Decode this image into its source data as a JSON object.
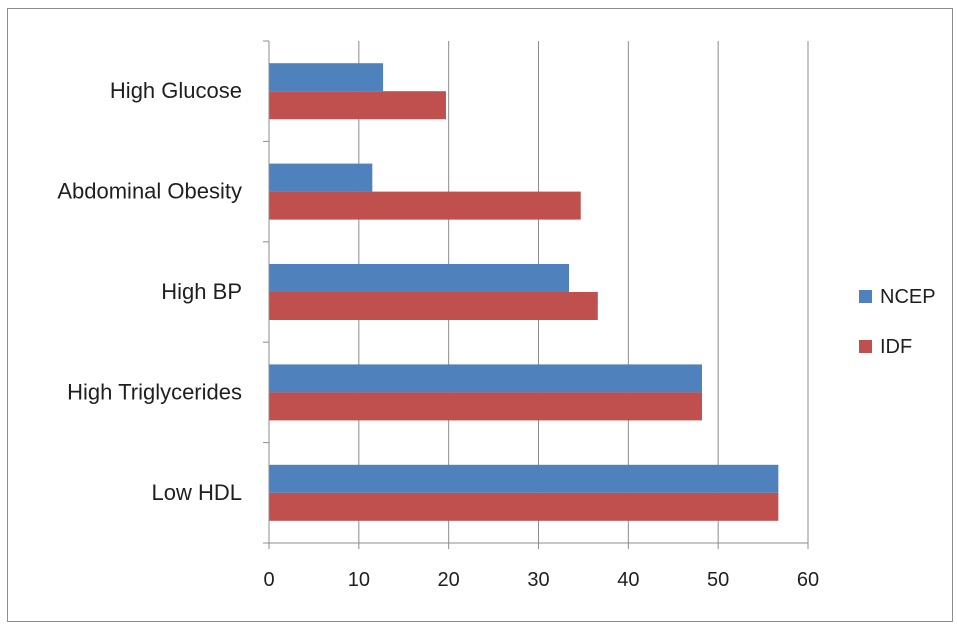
{
  "chart_data": {
    "type": "bar",
    "orientation": "horizontal",
    "categories": [
      "Low HDL",
      "High Triglycerides",
      "High BP",
      "Abdominal Obesity",
      "High Glucose"
    ],
    "series": [
      {
        "name": "NCEP",
        "color": "#4f81bd",
        "values": [
          56.7,
          48.2,
          33.4,
          11.5,
          12.7
        ]
      },
      {
        "name": "IDF",
        "color": "#c0504d",
        "values": [
          56.7,
          48.2,
          36.6,
          34.7,
          19.7
        ]
      }
    ],
    "xlim": [
      0,
      60
    ],
    "xticks": [
      "0",
      "10",
      "20",
      "30",
      "40",
      "50",
      "60"
    ],
    "title": "",
    "xlabel": "",
    "ylabel": "",
    "grid": "vertical",
    "legend_position": "right"
  }
}
